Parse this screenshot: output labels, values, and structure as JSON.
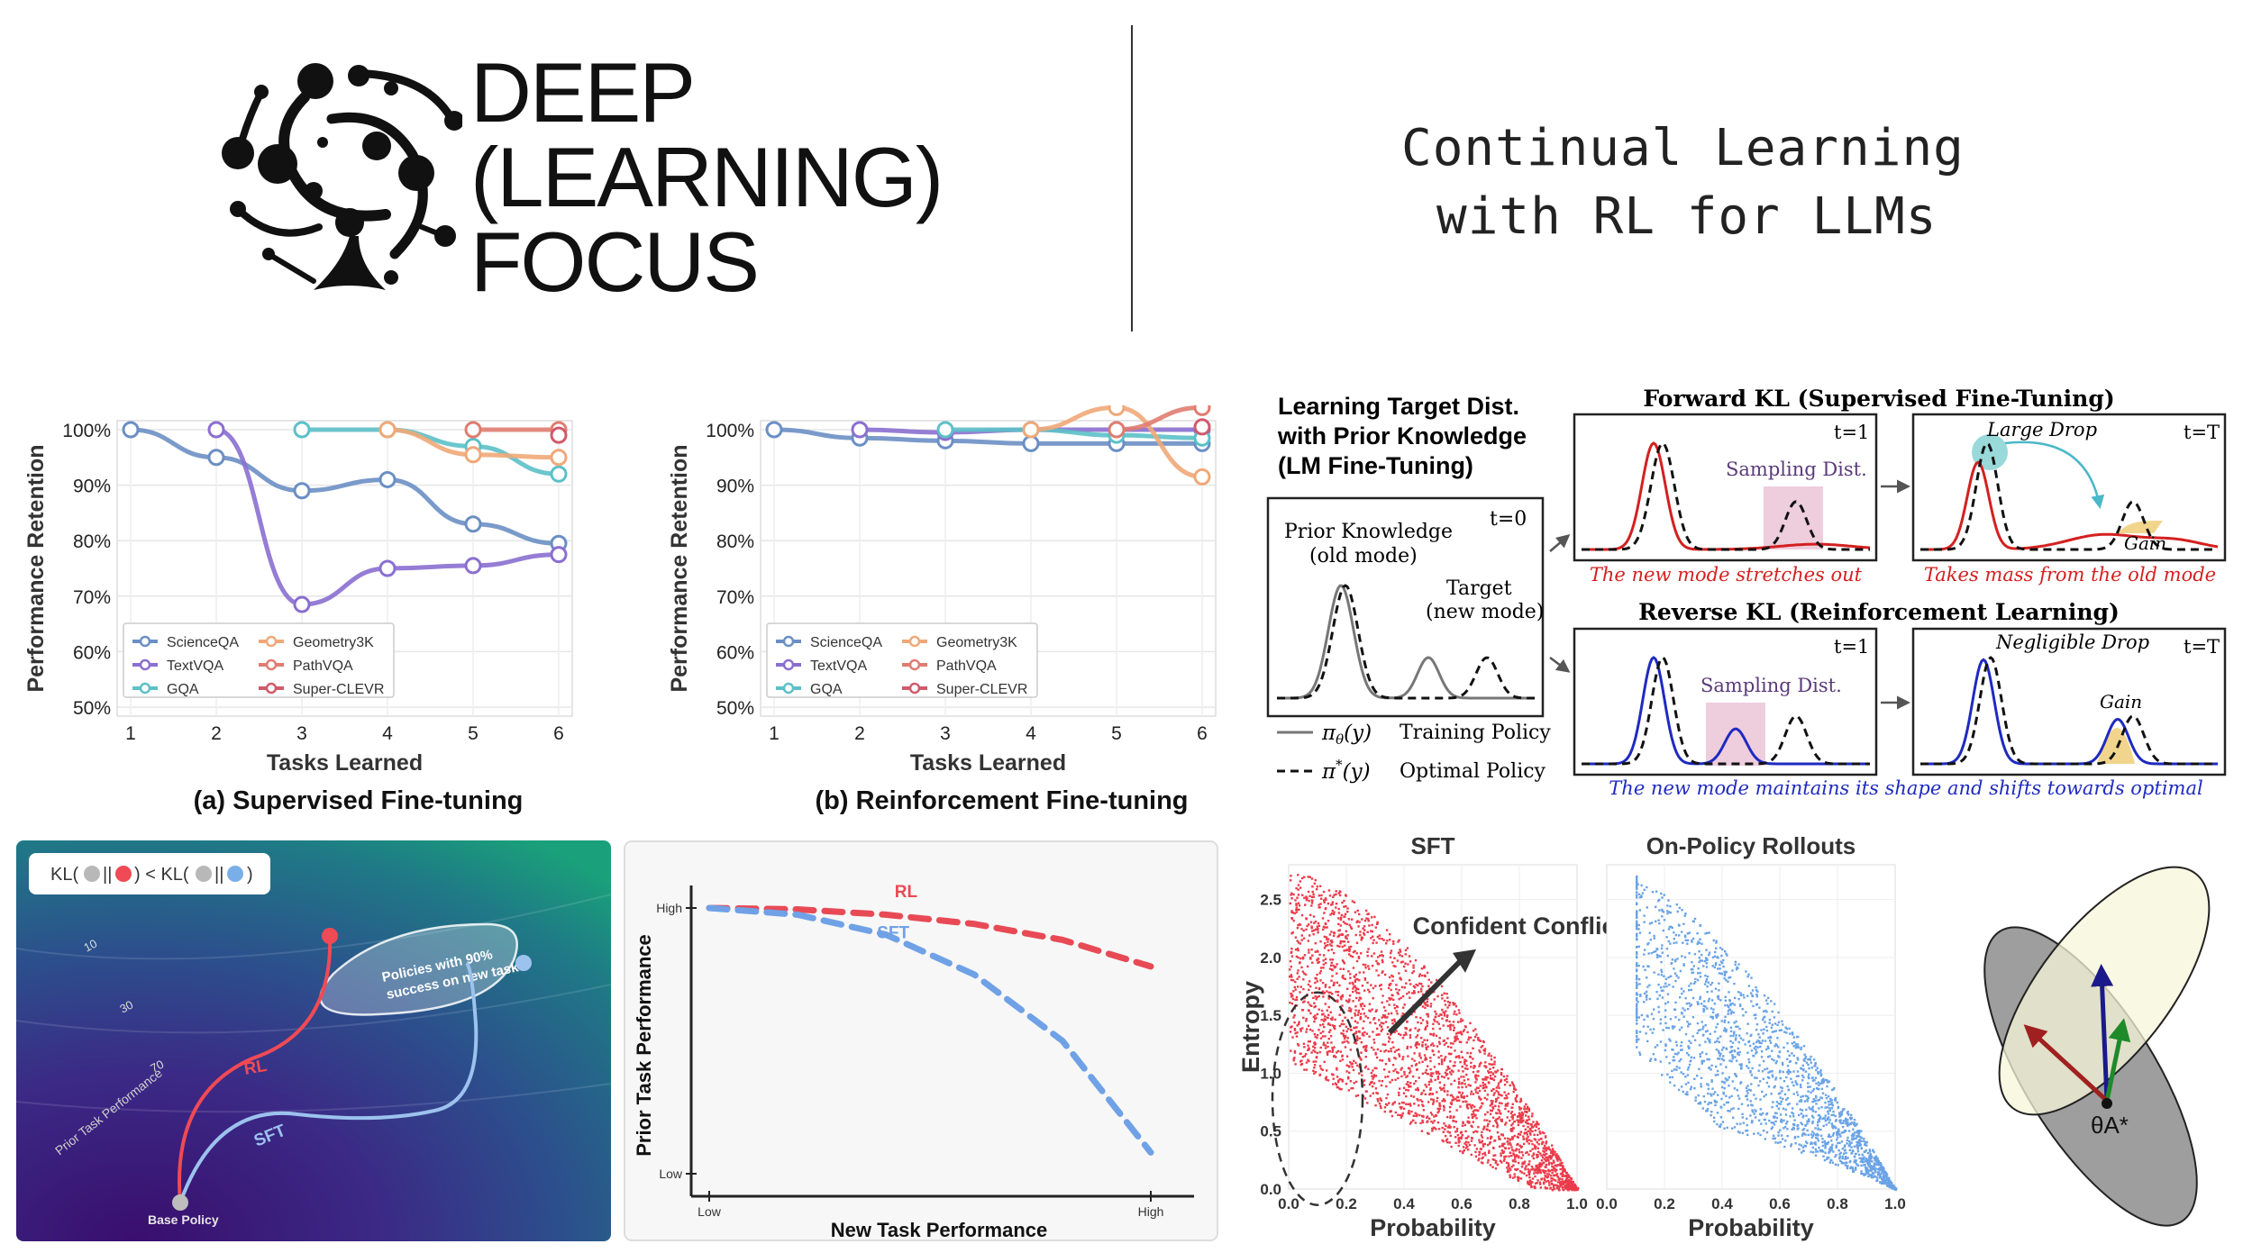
{
  "brand": {
    "line1": "DEEP",
    "line2": "(LEARNING)",
    "line3": "FOCUS"
  },
  "title": {
    "line1": "Continual Learning",
    "line2": "with RL for LLMs"
  },
  "chart_data": [
    {
      "type": "line",
      "id": "sft",
      "title": "(a) Supervised Fine-tuning",
      "xlabel": "Tasks Learned",
      "ylabel": "Performance Retention",
      "x": [
        1,
        2,
        3,
        4,
        5,
        6
      ],
      "ylim": [
        50,
        100
      ],
      "yticks": [
        "100%",
        "90%",
        "80%",
        "70%",
        "60%",
        "50%"
      ],
      "series": [
        {
          "name": "ScienceQA",
          "color": "#6b8fc4",
          "x": [
            1,
            2,
            3,
            4,
            5,
            6
          ],
          "values": [
            100,
            95,
            89,
            91,
            83,
            79.5
          ]
        },
        {
          "name": "TextVQA",
          "color": "#8a6fd0",
          "x": [
            2,
            3,
            4,
            5,
            6
          ],
          "values": [
            100,
            68.5,
            75,
            75.5,
            77.5
          ]
        },
        {
          "name": "GQA",
          "color": "#5cc0c8",
          "x": [
            3,
            4,
            5,
            6
          ],
          "values": [
            100,
            100,
            97,
            92
          ]
        },
        {
          "name": "Geometry3K",
          "color": "#f0a878",
          "x": [
            4,
            5,
            6
          ],
          "values": [
            100,
            95.5,
            95
          ]
        },
        {
          "name": "PathVQA",
          "color": "#e07c70",
          "x": [
            5,
            6
          ],
          "values": [
            100,
            100
          ]
        },
        {
          "name": "Super-CLEVR",
          "color": "#d05a6a",
          "x": [
            6
          ],
          "values": [
            99
          ]
        }
      ]
    },
    {
      "type": "line",
      "id": "rl",
      "title": "(b) Reinforcement Fine-tuning",
      "xlabel": "Tasks Learned",
      "ylabel": "Performance Retention",
      "x": [
        1,
        2,
        3,
        4,
        5,
        6
      ],
      "ylim": [
        50,
        100
      ],
      "yticks": [
        "100%",
        "90%",
        "80%",
        "70%",
        "60%",
        "50%"
      ],
      "series": [
        {
          "name": "ScienceQA",
          "color": "#6b8fc4",
          "x": [
            1,
            2,
            3,
            4,
            5,
            6
          ],
          "values": [
            100,
            98.5,
            98,
            97.5,
            97.5,
            97.5
          ]
        },
        {
          "name": "TextVQA",
          "color": "#8a6fd0",
          "x": [
            2,
            3,
            4,
            5,
            6
          ],
          "values": [
            100,
            99.5,
            100,
            100,
            100
          ]
        },
        {
          "name": "GQA",
          "color": "#5cc0c8",
          "x": [
            3,
            4,
            5,
            6
          ],
          "values": [
            100,
            100,
            99,
            98.5
          ]
        },
        {
          "name": "Geometry3K",
          "color": "#f0a878",
          "x": [
            4,
            5,
            6
          ],
          "values": [
            100,
            104,
            91.5
          ]
        },
        {
          "name": "PathVQA",
          "color": "#e07c70",
          "x": [
            5,
            6
          ],
          "values": [
            100,
            104
          ]
        },
        {
          "name": "Super-CLEVR",
          "color": "#d05a6a",
          "x": [
            6
          ],
          "values": [
            100.5
          ]
        }
      ]
    },
    {
      "type": "line",
      "id": "tradeoff",
      "xlabel": "New Task Performance",
      "ylabel": "Prior Task Performance",
      "xticks": [
        "Low",
        "High"
      ],
      "yticks": [
        "High",
        "Low"
      ],
      "series": [
        {
          "name": "RL",
          "color": "#e84a55",
          "x": [
            0,
            0.2,
            0.4,
            0.6,
            0.8,
            1.0
          ],
          "values": [
            1.0,
            0.995,
            0.975,
            0.94,
            0.88,
            0.78
          ]
        },
        {
          "name": "SFT",
          "color": "#6fa1e6",
          "x": [
            0,
            0.2,
            0.4,
            0.6,
            0.8,
            1.0
          ],
          "values": [
            1.0,
            0.975,
            0.9,
            0.75,
            0.5,
            0.08
          ]
        }
      ]
    },
    {
      "type": "scatter",
      "id": "entropy",
      "panels": [
        "SFT",
        "On-Policy Rollouts"
      ],
      "xlabel": "Probability",
      "ylabel": "Entropy",
      "xticks": [
        "0.0",
        "0.2",
        "0.4",
        "0.6",
        "0.8",
        "1.0"
      ],
      "yticks": [
        "0.0",
        "0.5",
        "1.0",
        "1.5",
        "2.0",
        "2.5"
      ],
      "annotation": "Confident Conflicts",
      "colors": [
        "#ec3b4a",
        "#6aa3e6"
      ]
    }
  ],
  "legend_labels": [
    "ScienceQA",
    "Geometry3K",
    "TextVQA",
    "PathVQA",
    "GQA",
    "Super-CLEVR"
  ],
  "kl": {
    "heading": "Learning Target Dist.\nwith Prior Knowledge\n(LM Fine-Tuning)",
    "t0": "t=0",
    "t1": "t=1",
    "tT": "t=T",
    "prior": "Prior Knowledge",
    "old_mode": "(old mode)",
    "target": "Target",
    "new_mode": "(new mode)",
    "legend_train": "Training Policy",
    "legend_opt": "Optimal Policy",
    "forward_title": "Forward KL (Supervised Fine-Tuning)",
    "reverse_title": "Reverse KL (Reinforcement Learning)",
    "sampling": "Sampling Dist.",
    "large_drop": "Large Drop",
    "gain": "Gain",
    "negligible": "Negligible Drop",
    "cap_fwd1": "The new mode stretches out",
    "cap_fwd2": "Takes mass from the old mode",
    "cap_rev": "The new mode maintains its shape and shifts towards optimal",
    "red": "#d42020",
    "blue": "#1f2ac0"
  },
  "landscape": {
    "kl_text_a": "KL(",
    "kl_text_b": "||",
    "kl_text_c": ") < KL(",
    "kl_text_d": "||",
    "kl_text_e": ")",
    "c10": "10",
    "c30": "30",
    "c70": "70",
    "axis": "Prior Task Performance",
    "blob1": "Policies with 90%",
    "blob2": "success on new task",
    "rl": "RL",
    "sft": "SFT",
    "base": "Base Policy",
    "gray": "#b8b8b8",
    "red": "#ef4a55",
    "blue": "#7aaee8"
  },
  "theta": "θA*"
}
